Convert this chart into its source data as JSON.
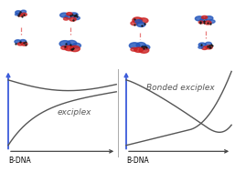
{
  "background_color": "#ffffff",
  "left_panel": {
    "label": "exciplex",
    "bdna_label": "B-DNA",
    "curve_color": "#555555"
  },
  "right_panel": {
    "label": "Bonded exciplex",
    "bdna_label": "B-DNA",
    "curve_color": "#555555"
  },
  "arrow_color": "#3b5bdb",
  "axis_color": "#444444",
  "divider_color": "#aaaaaa",
  "red_line_color": "#e87c7c",
  "font_size_label": 6.5,
  "font_size_bdna": 5.5,
  "lw_curve": 1.0,
  "lw_axis": 0.9,
  "lw_arrow": 1.3
}
